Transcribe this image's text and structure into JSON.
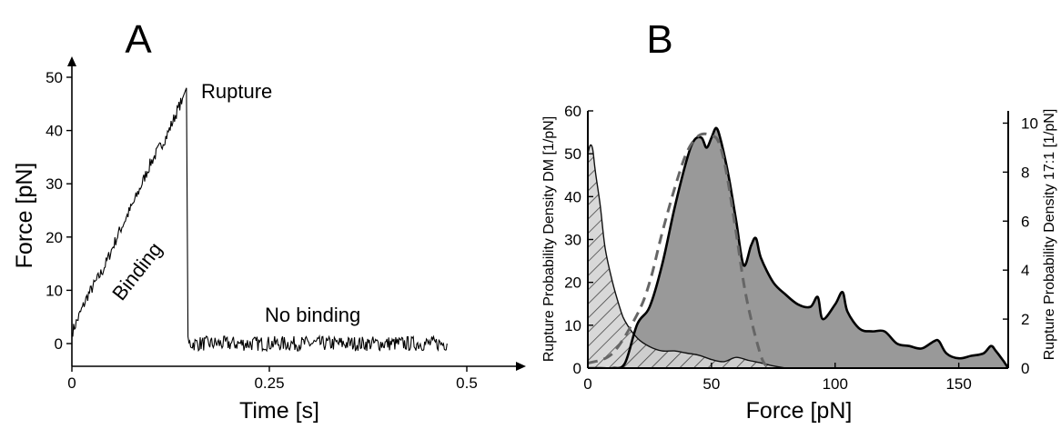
{
  "panels": {
    "a_label": "A",
    "b_label": "B"
  },
  "chart_data": [
    {
      "type": "line",
      "panel": "A",
      "xlabel": "Time [s]",
      "ylabel": "Force [pN]",
      "xlim": [
        0,
        0.52
      ],
      "ylim": [
        -3,
        55
      ],
      "xticks": [
        0,
        0.25,
        0.5
      ],
      "xtick_labels": [
        "0",
        "0.25",
        "0.5"
      ],
      "yticks": [
        0,
        10,
        20,
        30,
        40,
        50
      ],
      "ytick_labels": [
        "0",
        "10",
        "20",
        "30",
        "40",
        "50"
      ],
      "grid": false,
      "annotations": [
        {
          "text": "Rupture",
          "x": 0.155,
          "y": 48
        },
        {
          "text": "Binding",
          "x": 0.06,
          "y": 19,
          "rotation_deg": -52
        },
        {
          "text": "No binding",
          "x": 0.26,
          "y": 5
        }
      ],
      "series": [
        {
          "x": [
            0,
            0.02,
            0.04,
            0.06,
            0.08,
            0.1,
            0.12,
            0.14,
            0.145,
            0.147,
            0.2,
            0.25,
            0.3,
            0.35,
            0.4,
            0.45,
            0.475
          ],
          "y": [
            2,
            9,
            14,
            21,
            27,
            34,
            39,
            46,
            48,
            0,
            0,
            0,
            0,
            0,
            0,
            0,
            0
          ]
        }
      ]
    },
    {
      "type": "area",
      "panel": "B",
      "xlabel": "Force [pN]",
      "ylabel": "Rupture Probability Density DM [1/pN]",
      "ylabel_right": "Rupture Probability Density 17:1 [1/pN]",
      "xlim": [
        0,
        170
      ],
      "ylim": [
        0,
        60
      ],
      "ylim_right": [
        0,
        10.5
      ],
      "xticks": [
        0,
        50,
        100,
        150
      ],
      "xtick_labels": [
        "0",
        "50",
        "100",
        "150"
      ],
      "yticks": [
        0,
        10,
        20,
        30,
        40,
        50,
        60
      ],
      "ytick_labels": [
        "0",
        "10",
        "20",
        "30",
        "40",
        "50",
        "60"
      ],
      "yticks_right": [
        0,
        2,
        4,
        6,
        8,
        10
      ],
      "ytick_labels_right": [
        "0",
        "2",
        "4",
        "6",
        "8",
        "10"
      ],
      "grid": false,
      "series": [
        {
          "style": "hatched area",
          "axis": "left",
          "x": [
            0,
            1,
            2,
            3,
            5,
            7,
            10,
            13,
            15,
            20,
            25,
            30,
            35,
            40,
            45,
            50,
            55,
            60,
            65,
            70,
            75,
            80
          ],
          "y": [
            50,
            52,
            51,
            46,
            38,
            28,
            20,
            14,
            11,
            7,
            5,
            4,
            4,
            3.5,
            3,
            2,
            1.5,
            2.5,
            1.8,
            1.2,
            0.5,
            0
          ]
        },
        {
          "style": "gray filled area",
          "axis": "right",
          "x": [
            0,
            5,
            10,
            15,
            20,
            25,
            30,
            35,
            40,
            43,
            46,
            48,
            50,
            52,
            54,
            57,
            60,
            63,
            66,
            68,
            70,
            75,
            80,
            85,
            90,
            93,
            95,
            100,
            103,
            105,
            110,
            115,
            120,
            125,
            130,
            135,
            140,
            142,
            145,
            150,
            155,
            160,
            163,
            165,
            168,
            170
          ],
          "y": [
            0,
            0,
            0,
            0.2,
            1.8,
            2.5,
            4.2,
            6.5,
            8.5,
            9.3,
            9.4,
            9.0,
            9.4,
            9.8,
            9.2,
            7.8,
            6.0,
            4.2,
            5.0,
            5.3,
            4.5,
            3.5,
            3.0,
            2.6,
            2.5,
            2.9,
            2.0,
            2.6,
            3.1,
            2.3,
            1.6,
            1.5,
            1.5,
            1.0,
            0.9,
            0.8,
            1.1,
            1.1,
            0.6,
            0.4,
            0.5,
            0.6,
            0.9,
            0.7,
            0.3,
            0
          ]
        },
        {
          "style": "dashed fit",
          "axis": "right",
          "x": [
            0,
            10,
            20,
            25,
            30,
            35,
            40,
            45,
            50,
            53,
            56,
            60,
            63,
            66,
            70,
            72
          ],
          "y": [
            0.2,
            0.6,
            2.2,
            3.5,
            5.5,
            7.3,
            8.8,
            9.5,
            9.5,
            9.2,
            8.0,
            5.5,
            3.5,
            2.0,
            0.5,
            0.1
          ]
        }
      ]
    }
  ]
}
